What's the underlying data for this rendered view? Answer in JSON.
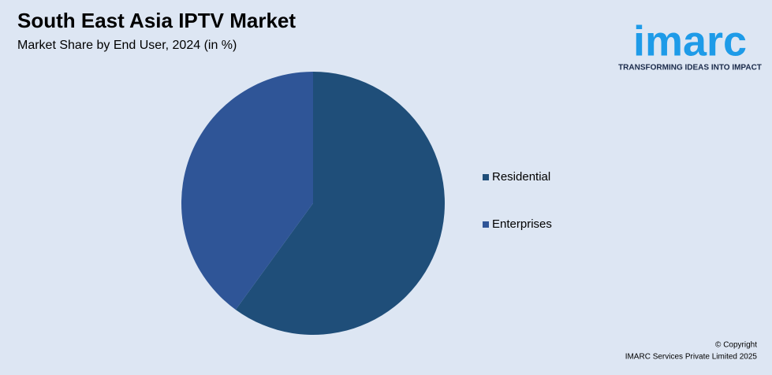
{
  "chart_data": {
    "type": "pie",
    "title": "South East Asia IPTV Market",
    "subtitle": "Market Share by End User, 2024 (in %)",
    "categories": [
      "Residential",
      "Enterprises"
    ],
    "values": [
      60,
      40
    ],
    "colors": [
      "#1f4e79",
      "#2f5597"
    ],
    "legend": "right"
  },
  "logo": {
    "name": "imarc",
    "tagline": "TRANSFORMING IDEAS INTO IMPACT"
  },
  "footer": {
    "copyright": "© Copyright",
    "company": "IMARC Services Private Limited 2025"
  }
}
